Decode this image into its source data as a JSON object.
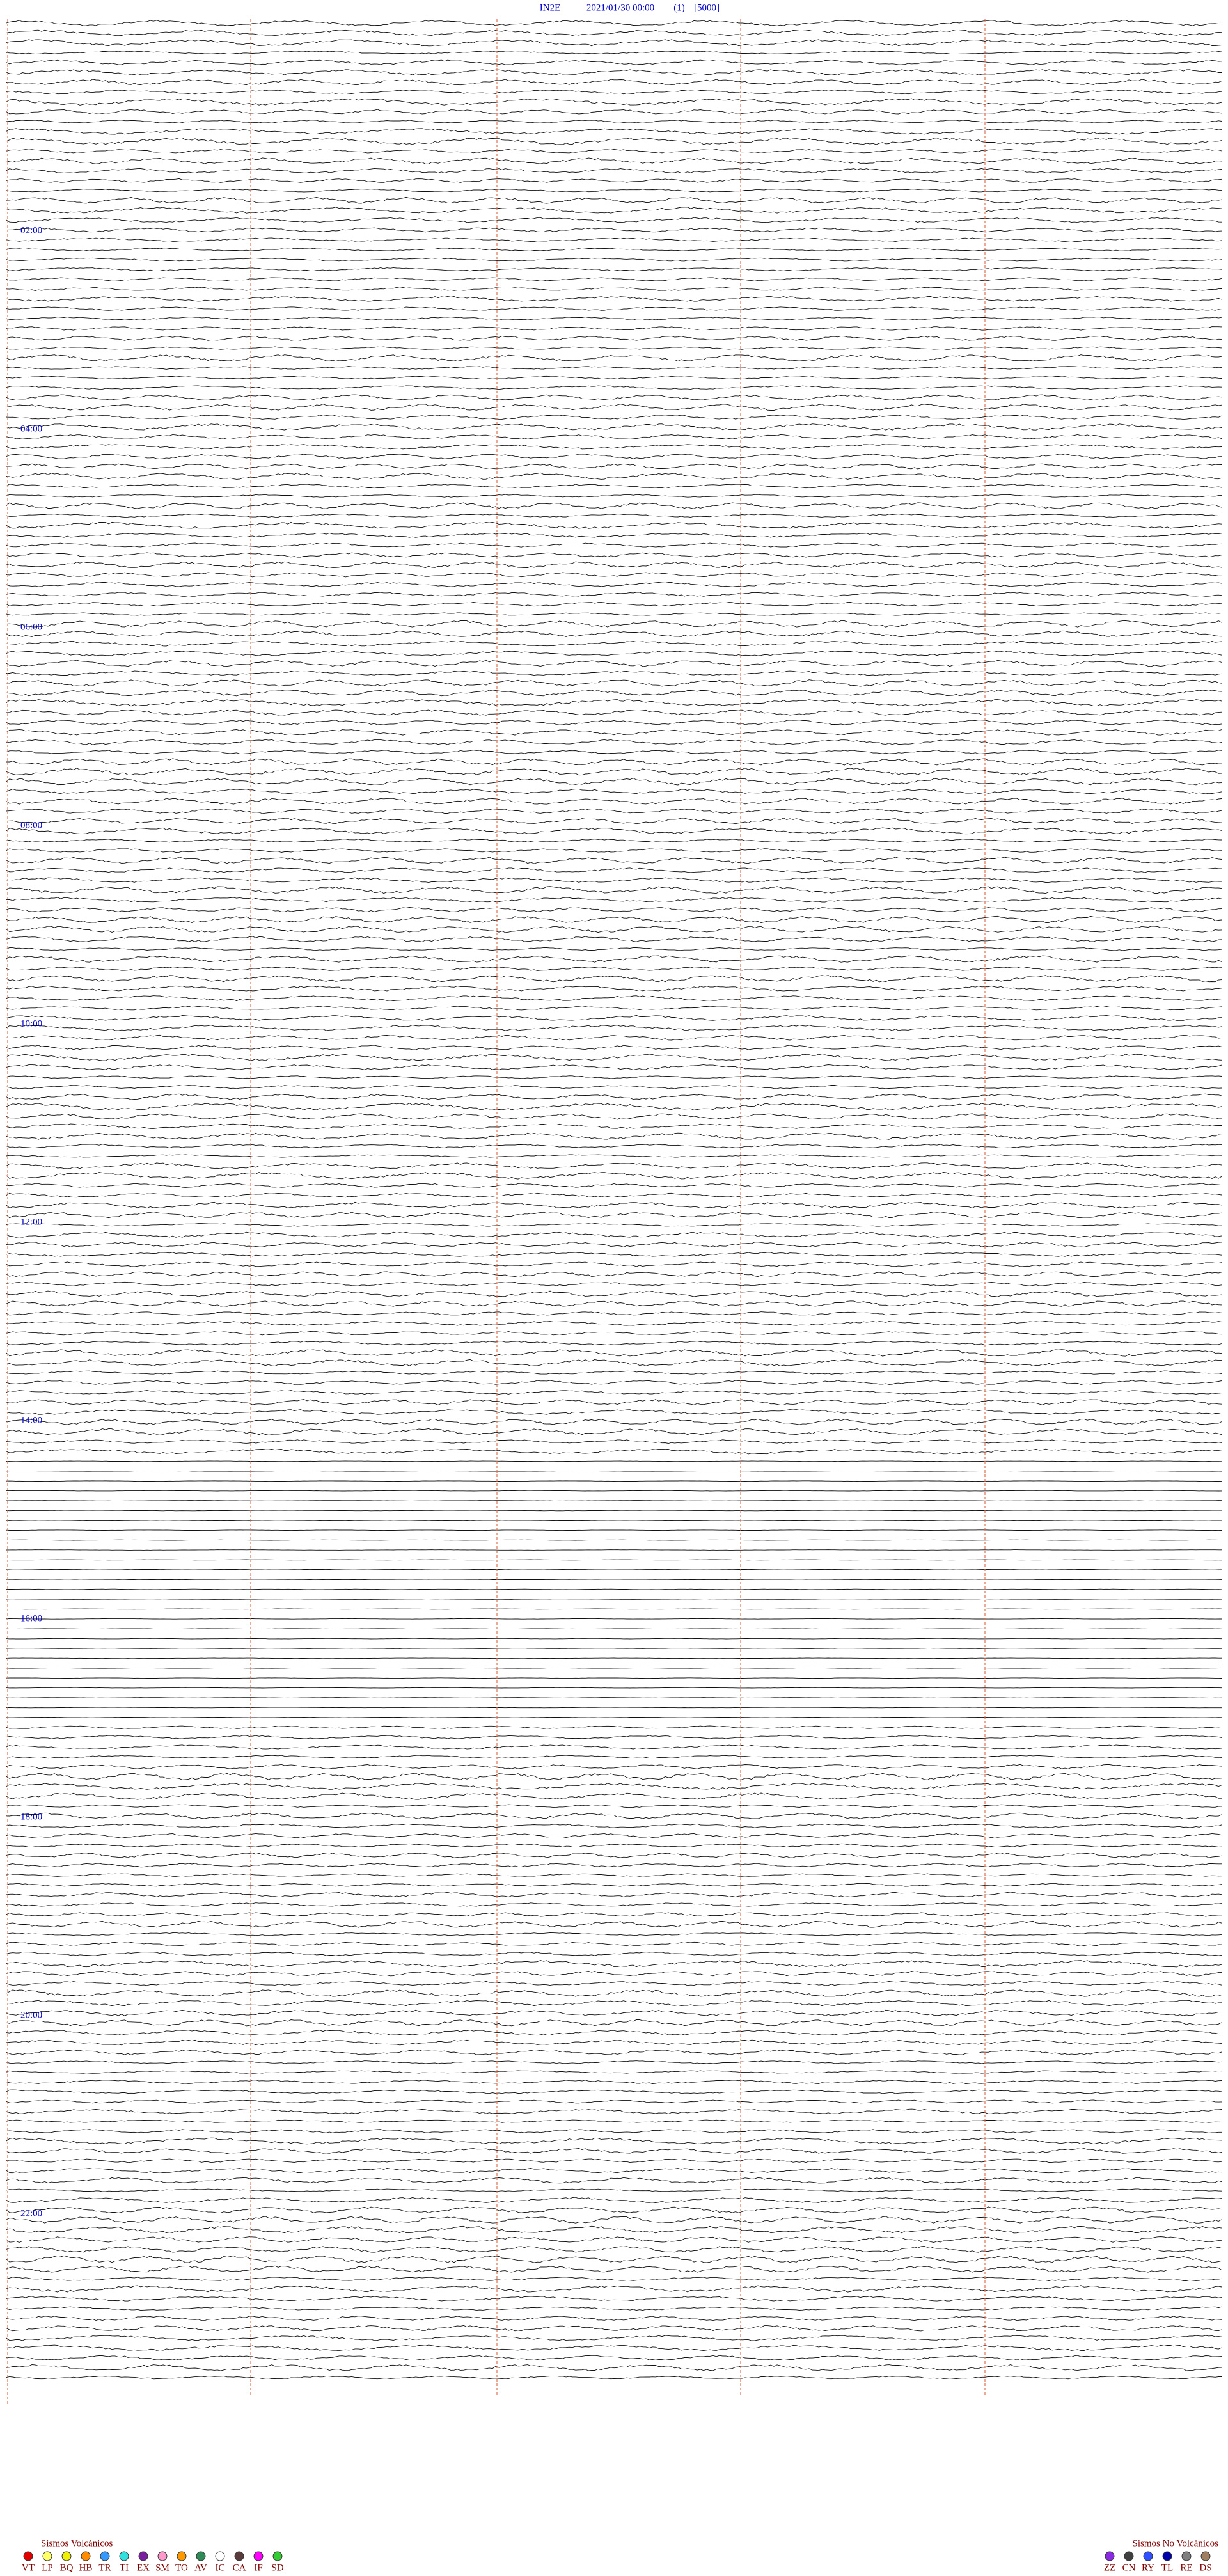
{
  "header": {
    "station": "IN2E",
    "datetime": "2021/01/30 00:00",
    "channel": "(1)",
    "scale": "[5000]"
  },
  "hour_labels": [
    "02:00",
    "04:00",
    "06:00",
    "08:00",
    "10:00",
    "12:00",
    "14:00",
    "16:00",
    "18:00",
    "20:00",
    "22:00"
  ],
  "legend": {
    "volcanic": {
      "title": "Sismos Volcánicos",
      "items": [
        {
          "code": "VT",
          "color": "#e00000"
        },
        {
          "code": "LP",
          "color": "#ffff66"
        },
        {
          "code": "BQ",
          "color": "#f0f000"
        },
        {
          "code": "HB",
          "color": "#ff8c00"
        },
        {
          "code": "TR",
          "color": "#3399ff"
        },
        {
          "code": "TI",
          "color": "#33e0e0"
        },
        {
          "code": "EX",
          "color": "#7a1fa0"
        },
        {
          "code": "SM",
          "color": "#ff99cc"
        },
        {
          "code": "TO",
          "color": "#ff9900"
        },
        {
          "code": "AV",
          "color": "#2e8b57"
        },
        {
          "code": "IC",
          "color": "#ffffff"
        },
        {
          "code": "CA",
          "color": "#5a3a3a"
        },
        {
          "code": "IF",
          "color": "#ff00ff"
        },
        {
          "code": "SD",
          "color": "#33cc33"
        }
      ]
    },
    "non_volcanic": {
      "title": "Sismos No Volcánicos",
      "items": [
        {
          "code": "ZZ",
          "color": "#8a2be2"
        },
        {
          "code": "CN",
          "color": "#404040"
        },
        {
          "code": "RY",
          "color": "#3050ff"
        },
        {
          "code": "TL",
          "color": "#0000aa"
        },
        {
          "code": "RE",
          "color": "#808080"
        },
        {
          "code": "DS",
          "color": "#a08060"
        }
      ]
    }
  }
}
